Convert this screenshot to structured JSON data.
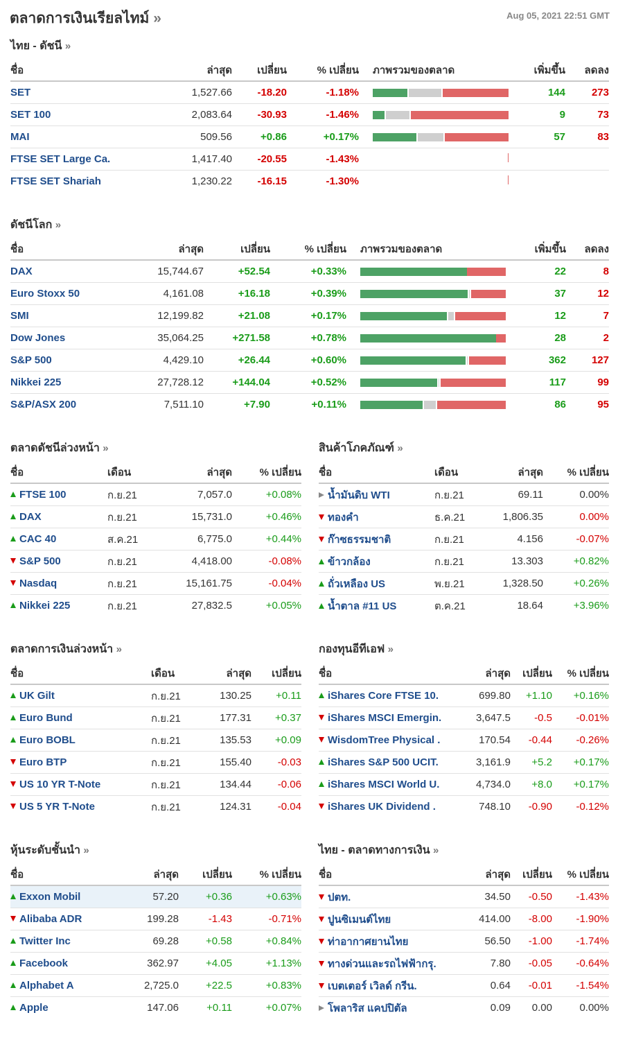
{
  "header": {
    "title": "ตลาดการเงินเรียลไทม์",
    "arrow": "»",
    "timestamp": "Aug 05, 2021 22:51 GMT"
  },
  "colors": {
    "up": "#1a9c1a",
    "down": "#d40000",
    "link": "#1f4d8c",
    "bar_up": "#4da265",
    "bar_down": "#e06666",
    "bar_unchanged": "#cfcfcf"
  },
  "icons": {
    "up": "triangle-up-icon",
    "down": "triangle-down-icon",
    "flat": "triangle-right-icon"
  },
  "thai_indices": {
    "title": "ไทย - ดัชนี",
    "arrow": "»",
    "headers": {
      "name": "ชื่อ",
      "last": "ล่าสุด",
      "change": "เปลี่ยน",
      "pct": "% เปลี่ยน",
      "overview": "ภาพรวมของตลาด",
      "adv": "เพิ่มขึ้น",
      "dec": "ลดลง"
    },
    "rows": [
      {
        "name": "SET",
        "last": "1,527.66",
        "change": "-18.20",
        "pct": "-1.18%",
        "dir": "down",
        "adv": "144",
        "dec": "273",
        "breadth": {
          "up": 144,
          "unchanged": 0.26,
          "down": 273
        }
      },
      {
        "name": "SET 100",
        "last": "2,083.64",
        "change": "-30.93",
        "pct": "-1.46%",
        "dir": "down",
        "adv": "9",
        "dec": "73",
        "breadth": {
          "up": 9,
          "unchanged": 0.19,
          "down": 73
        }
      },
      {
        "name": "MAI",
        "last": "509.56",
        "change": "+0.86",
        "pct": "+0.17%",
        "dir": "up",
        "adv": "57",
        "dec": "83",
        "breadth": {
          "up": 57,
          "unchanged": 0.21,
          "down": 83
        }
      },
      {
        "name": "FTSE SET Large Ca.",
        "last": "1,417.40",
        "change": "-20.55",
        "pct": "-1.43%",
        "dir": "down",
        "adv": "",
        "dec": "",
        "breadth": null
      },
      {
        "name": "FTSE SET Shariah",
        "last": "1,230.22",
        "change": "-16.15",
        "pct": "-1.30%",
        "dir": "down",
        "adv": "",
        "dec": "",
        "breadth": null
      }
    ]
  },
  "world_indices": {
    "title": "ดัชนีโลก",
    "arrow": "»",
    "headers": {
      "name": "ชื่อ",
      "last": "ล่าสุด",
      "change": "เปลี่ยน",
      "pct": "% เปลี่ยน",
      "overview": "ภาพรวมของตลาด",
      "adv": "เพิ่มขึ้น",
      "dec": "ลดลง"
    },
    "rows": [
      {
        "name": "DAX",
        "last": "15,744.67",
        "change": "+52.54",
        "pct": "+0.33%",
        "dir": "up",
        "adv": "22",
        "dec": "8",
        "breadth": {
          "up": 22,
          "unchanged": 0.0,
          "down": 8
        }
      },
      {
        "name": "Euro Stoxx 50",
        "last": "4,161.08",
        "change": "+16.18",
        "pct": "+0.39%",
        "dir": "up",
        "adv": "37",
        "dec": "12",
        "breadth": {
          "up": 37,
          "unchanged": 0.02,
          "down": 12
        }
      },
      {
        "name": "SMI",
        "last": "12,199.82",
        "change": "+21.08",
        "pct": "+0.17%",
        "dir": "up",
        "adv": "12",
        "dec": "7",
        "breadth": {
          "up": 12,
          "unchanged": 0.06,
          "down": 7
        }
      },
      {
        "name": "Dow Jones",
        "last": "35,064.25",
        "change": "+271.58",
        "pct": "+0.78%",
        "dir": "up",
        "adv": "28",
        "dec": "2",
        "breadth": {
          "up": 28,
          "unchanged": 0.0,
          "down": 2
        }
      },
      {
        "name": "S&P 500",
        "last": "4,429.10",
        "change": "+26.44",
        "pct": "+0.60%",
        "dir": "up",
        "adv": "362",
        "dec": "127",
        "breadth": {
          "up": 362,
          "unchanged": 0.02,
          "down": 127
        }
      },
      {
        "name": "Nikkei 225",
        "last": "27,728.12",
        "change": "+144.04",
        "pct": "+0.52%",
        "dir": "up",
        "adv": "117",
        "dec": "99",
        "breadth": {
          "up": 117,
          "unchanged": 0.02,
          "down": 99
        }
      },
      {
        "name": "S&P/ASX 200",
        "last": "7,511.10",
        "change": "+7.90",
        "pct": "+0.11%",
        "dir": "up",
        "adv": "86",
        "dec": "95",
        "breadth": {
          "up": 86,
          "unchanged": 0.1,
          "down": 95
        }
      }
    ]
  },
  "index_futures": {
    "title": "ตลาดดัชนีล่วงหน้า",
    "arrow": "»",
    "headers": {
      "name": "ชื่อ",
      "month": "เดือน",
      "last": "ล่าสุด",
      "pct": "% เปลี่ยน"
    },
    "rows": [
      {
        "name": "FTSE 100",
        "month": "ก.ย.21",
        "last": "7,057.0",
        "pct": "+0.08%",
        "dir": "up"
      },
      {
        "name": "DAX",
        "month": "ก.ย.21",
        "last": "15,731.0",
        "pct": "+0.46%",
        "dir": "up"
      },
      {
        "name": "CAC 40",
        "month": "ส.ค.21",
        "last": "6,775.0",
        "pct": "+0.44%",
        "dir": "up"
      },
      {
        "name": "S&P 500",
        "month": "ก.ย.21",
        "last": "4,418.00",
        "pct": "-0.08%",
        "dir": "down"
      },
      {
        "name": "Nasdaq",
        "month": "ก.ย.21",
        "last": "15,161.75",
        "pct": "-0.04%",
        "dir": "down"
      },
      {
        "name": "Nikkei 225",
        "month": "ก.ย.21",
        "last": "27,832.5",
        "pct": "+0.05%",
        "dir": "up"
      }
    ]
  },
  "commodities": {
    "title": "สินค้าโภคภัณฑ์",
    "arrow": "»",
    "headers": {
      "name": "ชื่อ",
      "month": "เดือน",
      "last": "ล่าสุด",
      "pct": "% เปลี่ยน"
    },
    "rows": [
      {
        "name": "น้ำมันดิบ WTI",
        "month": "ก.ย.21",
        "last": "69.11",
        "pct": "0.00%",
        "dir": "flat"
      },
      {
        "name": "ทองคำ",
        "month": "ธ.ค.21",
        "last": "1,806.35",
        "pct": "0.00%",
        "dir": "down"
      },
      {
        "name": "ก๊าซธรรมชาติ",
        "month": "ก.ย.21",
        "last": "4.156",
        "pct": "-0.07%",
        "dir": "down"
      },
      {
        "name": "ข้าวกล้อง",
        "month": "ก.ย.21",
        "last": "13.303",
        "pct": "+0.82%",
        "dir": "up"
      },
      {
        "name": "ถั่วเหลือง US",
        "month": "พ.ย.21",
        "last": "1,328.50",
        "pct": "+0.26%",
        "dir": "up"
      },
      {
        "name": "น้ำตาล #11 US",
        "month": "ต.ค.21",
        "last": "18.64",
        "pct": "+3.96%",
        "dir": "up"
      }
    ]
  },
  "bond_futures": {
    "title": "ตลาดการเงินล่วงหน้า",
    "arrow": "»",
    "headers": {
      "name": "ชื่อ",
      "month": "เดือน",
      "last": "ล่าสุด",
      "change": "เปลี่ยน"
    },
    "rows": [
      {
        "name": "UK Gilt",
        "month": "ก.ย.21",
        "last": "130.25",
        "change": "+0.11",
        "dir": "up"
      },
      {
        "name": "Euro Bund",
        "month": "ก.ย.21",
        "last": "177.31",
        "change": "+0.37",
        "dir": "up"
      },
      {
        "name": "Euro BOBL",
        "month": "ก.ย.21",
        "last": "135.53",
        "change": "+0.09",
        "dir": "up"
      },
      {
        "name": "Euro BTP",
        "month": "ก.ย.21",
        "last": "155.40",
        "change": "-0.03",
        "dir": "down"
      },
      {
        "name": "US 10 YR T-Note",
        "month": "ก.ย.21",
        "last": "134.44",
        "change": "-0.06",
        "dir": "down"
      },
      {
        "name": "US 5 YR T-Note",
        "month": "ก.ย.21",
        "last": "124.31",
        "change": "-0.04",
        "dir": "down"
      }
    ]
  },
  "etfs": {
    "title": "กองทุนอีทีเอฟ",
    "arrow": "»",
    "headers": {
      "name": "ชื่อ",
      "last": "ล่าสุด",
      "change": "เปลี่ยน",
      "pct": "% เปลี่ยน"
    },
    "rows": [
      {
        "name": "iShares Core FTSE 10.",
        "last": "699.80",
        "change": "+1.10",
        "pct": "+0.16%",
        "dir": "up"
      },
      {
        "name": "iShares MSCI Emergin.",
        "last": "3,647.5",
        "change": "-0.5",
        "pct": "-0.01%",
        "dir": "down"
      },
      {
        "name": "WisdomTree Physical .",
        "last": "170.54",
        "change": "-0.44",
        "pct": "-0.26%",
        "dir": "down"
      },
      {
        "name": "iShares S&P 500 UCIT.",
        "last": "3,161.9",
        "change": "+5.2",
        "pct": "+0.17%",
        "dir": "up"
      },
      {
        "name": "iShares MSCI World U.",
        "last": "4,734.0",
        "change": "+8.0",
        "pct": "+0.17%",
        "dir": "up"
      },
      {
        "name": "iShares UK Dividend .",
        "last": "748.10",
        "change": "-0.90",
        "pct": "-0.12%",
        "dir": "down"
      }
    ]
  },
  "top_stocks": {
    "title": "หุ้นระดับชั้นนำ",
    "arrow": "»",
    "headers": {
      "name": "ชื่อ",
      "last": "ล่าสุด",
      "change": "เปลี่ยน",
      "pct": "% เปลี่ยน"
    },
    "rows": [
      {
        "name": "Exxon Mobil",
        "last": "57.20",
        "change": "+0.36",
        "pct": "+0.63%",
        "dir": "up",
        "highlight": true
      },
      {
        "name": "Alibaba ADR",
        "last": "199.28",
        "change": "-1.43",
        "pct": "-0.71%",
        "dir": "down"
      },
      {
        "name": "Twitter Inc",
        "last": "69.28",
        "change": "+0.58",
        "pct": "+0.84%",
        "dir": "up"
      },
      {
        "name": "Facebook",
        "last": "362.97",
        "change": "+4.05",
        "pct": "+1.13%",
        "dir": "up"
      },
      {
        "name": "Alphabet A",
        "last": "2,725.0",
        "change": "+22.5",
        "pct": "+0.83%",
        "dir": "up"
      },
      {
        "name": "Apple",
        "last": "147.06",
        "change": "+0.11",
        "pct": "+0.07%",
        "dir": "up"
      }
    ]
  },
  "thai_stocks": {
    "title": "ไทย - ตลาดทางการเงิน",
    "arrow": "»",
    "headers": {
      "name": "ชื่อ",
      "last": "ล่าสุด",
      "change": "เปลี่ยน",
      "pct": "% เปลี่ยน"
    },
    "rows": [
      {
        "name": "ปตท.",
        "last": "34.50",
        "change": "-0.50",
        "pct": "-1.43%",
        "dir": "down"
      },
      {
        "name": "ปูนซิเมนต์ไทย",
        "last": "414.00",
        "change": "-8.00",
        "pct": "-1.90%",
        "dir": "down"
      },
      {
        "name": "ท่าอากาศยานไทย",
        "last": "56.50",
        "change": "-1.00",
        "pct": "-1.74%",
        "dir": "down"
      },
      {
        "name": "ทางด่วนและรถไฟฟ้ากรุ.",
        "last": "7.80",
        "change": "-0.05",
        "pct": "-0.64%",
        "dir": "down"
      },
      {
        "name": "เบตเตอร์ เวิลด์ กรีน.",
        "last": "0.64",
        "change": "-0.01",
        "pct": "-1.54%",
        "dir": "down"
      },
      {
        "name": "โพลาริส แคปปิตัล",
        "last": "0.09",
        "change": "0.00",
        "pct": "0.00%",
        "dir": "flat"
      }
    ]
  }
}
